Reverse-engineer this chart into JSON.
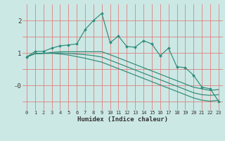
{
  "xlabel": "Humidex (Indice chaleur)",
  "x": [
    0,
    1,
    2,
    3,
    4,
    5,
    6,
    7,
    8,
    9,
    10,
    11,
    12,
    13,
    14,
    15,
    16,
    17,
    18,
    19,
    20,
    21,
    22,
    23
  ],
  "y_main": [
    0.88,
    1.05,
    1.05,
    1.15,
    1.22,
    1.25,
    1.28,
    1.72,
    2.0,
    2.22,
    1.32,
    1.52,
    1.2,
    1.18,
    1.38,
    1.28,
    0.92,
    1.15,
    0.58,
    0.55,
    0.32,
    -0.05,
    -0.1,
    -0.48
  ],
  "y_line1": [
    0.88,
    0.98,
    0.99,
    1.02,
    1.04,
    1.04,
    1.04,
    1.04,
    1.04,
    1.04,
    0.95,
    0.85,
    0.75,
    0.65,
    0.55,
    0.45,
    0.35,
    0.25,
    0.15,
    0.05,
    -0.05,
    -0.1,
    -0.15,
    -0.12
  ],
  "y_line2": [
    0.88,
    0.98,
    0.99,
    1.0,
    1.0,
    0.99,
    0.97,
    0.95,
    0.92,
    0.88,
    0.78,
    0.68,
    0.58,
    0.48,
    0.38,
    0.28,
    0.18,
    0.08,
    -0.02,
    -0.12,
    -0.22,
    -0.28,
    -0.3,
    -0.28
  ],
  "y_line3": [
    0.88,
    0.98,
    0.99,
    0.99,
    0.97,
    0.94,
    0.89,
    0.84,
    0.78,
    0.72,
    0.62,
    0.52,
    0.42,
    0.32,
    0.22,
    0.12,
    0.02,
    -0.08,
    -0.18,
    -0.28,
    -0.38,
    -0.45,
    -0.48,
    -0.45
  ],
  "line_color": "#2e8b7a",
  "bg_color": "#cce8e4",
  "grid_major_color": "#f0c0c0",
  "grid_minor_color": "#dde8e6",
  "ylim": [
    -0.75,
    2.5
  ],
  "xlim": [
    -0.5,
    23.5
  ],
  "ytick_vals": [
    0.0,
    1.0,
    2.0
  ],
  "ytick_labels": [
    "-0",
    "1",
    "2"
  ],
  "xticks": [
    0,
    1,
    2,
    3,
    4,
    5,
    6,
    7,
    8,
    9,
    10,
    11,
    12,
    13,
    14,
    15,
    16,
    17,
    18,
    19,
    20,
    21,
    22,
    23
  ]
}
